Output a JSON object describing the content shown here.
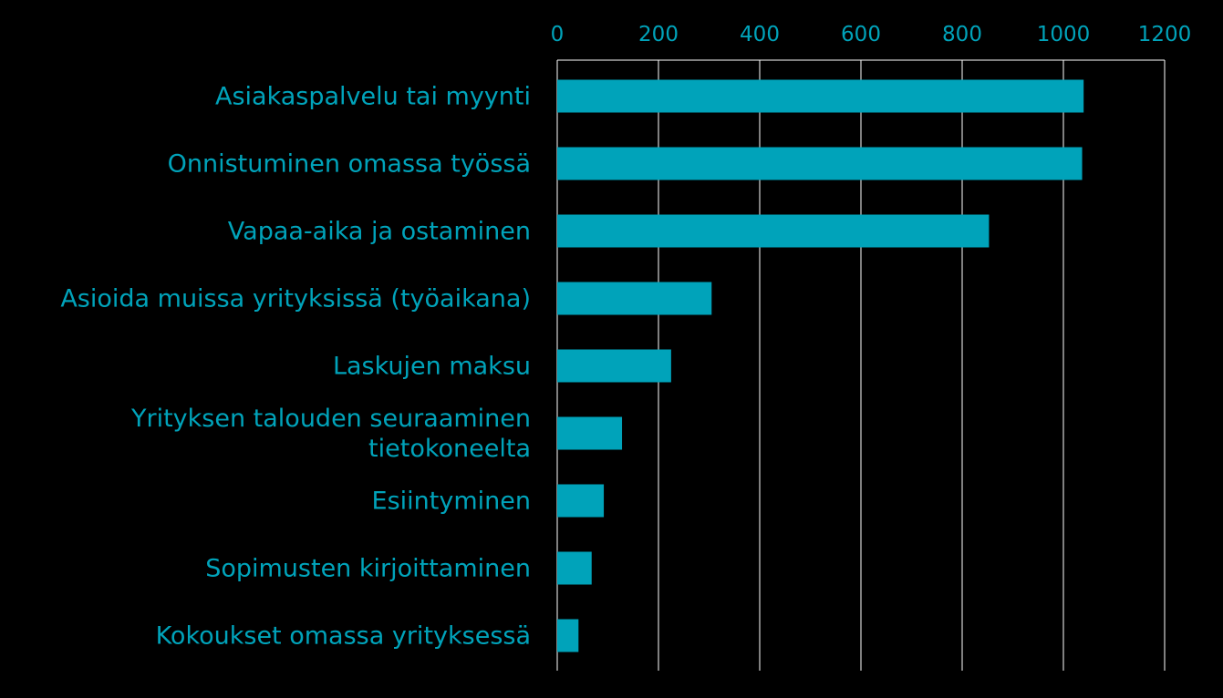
{
  "chart_data": {
    "type": "bar",
    "orientation": "horizontal",
    "title": "",
    "xlabel": "",
    "ylabel": "",
    "categories": [
      "Asiakaspalvelu tai myynti",
      "Onnistuminen omassa työssä",
      "Vapaa-aika ja ostaminen",
      "Asioida muissa yrityksissä (työaikana)",
      "Laskujen maksu",
      "Yrityksen talouden seuraaminen tietokoneelta",
      "Esiintyminen",
      "Sopimusten kirjoittaminen",
      "Kokoukset omassa yrityksessä"
    ],
    "category_label_lines": [
      [
        "Asiakaspalvelu tai myynti"
      ],
      [
        "Onnistuminen omassa työssä"
      ],
      [
        "Vapaa-aika ja ostaminen"
      ],
      [
        "Asioida muissa yrityksissä (työaikana)"
      ],
      [
        "Laskujen maksu"
      ],
      [
        "Yrityksen talouden seuraaminen",
        "tietokoneelta"
      ],
      [
        "Esiintyminen"
      ],
      [
        "Sopimusten kirjoittaminen"
      ],
      [
        "Kokoukset omassa yrityksessä"
      ]
    ],
    "values": [
      1040,
      1037,
      853,
      305,
      225,
      128,
      92,
      68,
      42
    ],
    "xlim": [
      0,
      1200
    ],
    "x_ticks": [
      0,
      200,
      400,
      600,
      800,
      1000,
      1200
    ],
    "x_axis_position": "top",
    "grid": true,
    "legend": "none",
    "colors": {
      "background": "#000000",
      "bar": "#00A3BA",
      "text": "#00A3BA",
      "grid": "#FFFFFF"
    }
  }
}
